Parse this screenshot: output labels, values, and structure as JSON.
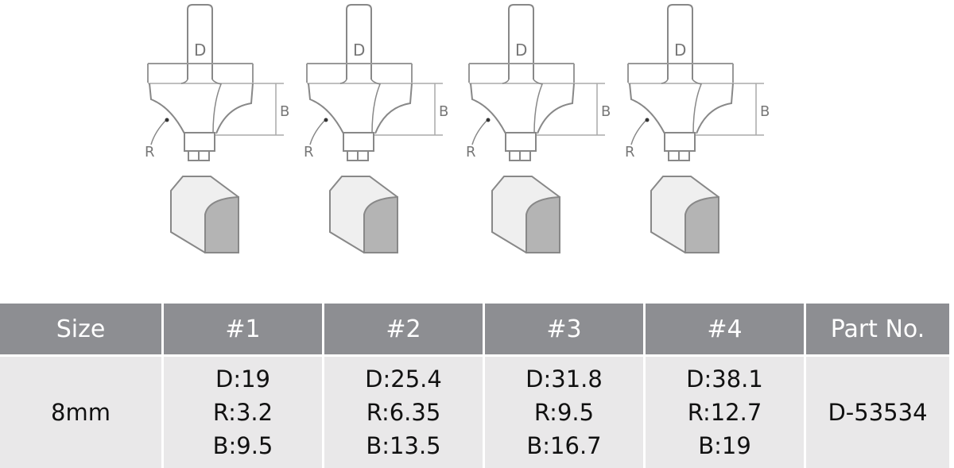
{
  "diagram": {
    "labels": {
      "d": "D",
      "b": "B",
      "r": "R"
    },
    "count": 4
  },
  "table": {
    "headers": [
      "Size",
      "#1",
      "#2",
      "#3",
      "#4",
      "Part No."
    ],
    "row": {
      "size": "8mm",
      "items": [
        {
          "d": "D:19",
          "r": "R:3.2",
          "b": "B:9.5"
        },
        {
          "d": "D:25.4",
          "r": "R:6.35",
          "b": "B:13.5"
        },
        {
          "d": "D:31.8",
          "r": "R:9.5",
          "b": "B:16.7"
        },
        {
          "d": "D:38.1",
          "r": "R:12.7",
          "b": "B:19"
        }
      ],
      "part_no": "D-53534"
    }
  },
  "colors": {
    "header_bg": "#8d8e92",
    "body_bg": "#e9e8e9",
    "shade": "#b4b4b4"
  }
}
